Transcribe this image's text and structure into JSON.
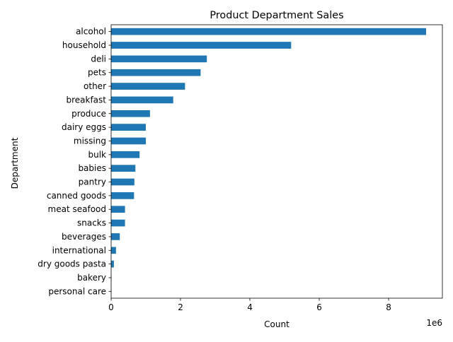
{
  "chart_data": {
    "type": "bar",
    "orientation": "horizontal",
    "title": "Product Department Sales",
    "xlabel": "Count",
    "ylabel": "Department",
    "x_scale_label": "1e6",
    "xlim": [
      0,
      9.55
    ],
    "x_ticks": [
      0,
      2,
      4,
      6,
      8
    ],
    "x_tick_labels": [
      "0",
      "2",
      "4",
      "6",
      "8"
    ],
    "bar_color": "#1f77b4",
    "grid": false,
    "legend": "none",
    "categories": [
      "alcohol",
      "household",
      "deli",
      "pets",
      "other",
      "breakfast",
      "produce",
      "dairy eggs",
      "missing",
      "bulk",
      "babies",
      "pantry",
      "canned goods",
      "meat seafood",
      "snacks",
      "beverages",
      "international",
      "dry goods pasta",
      "bakery",
      "personal care"
    ],
    "values": [
      9.08,
      5.19,
      2.76,
      2.58,
      2.13,
      1.79,
      1.12,
      1.0,
      1.0,
      0.82,
      0.7,
      0.67,
      0.66,
      0.4,
      0.4,
      0.25,
      0.14,
      0.08,
      0.01,
      0.005
    ],
    "value_unit_multiplier": 1000000
  }
}
